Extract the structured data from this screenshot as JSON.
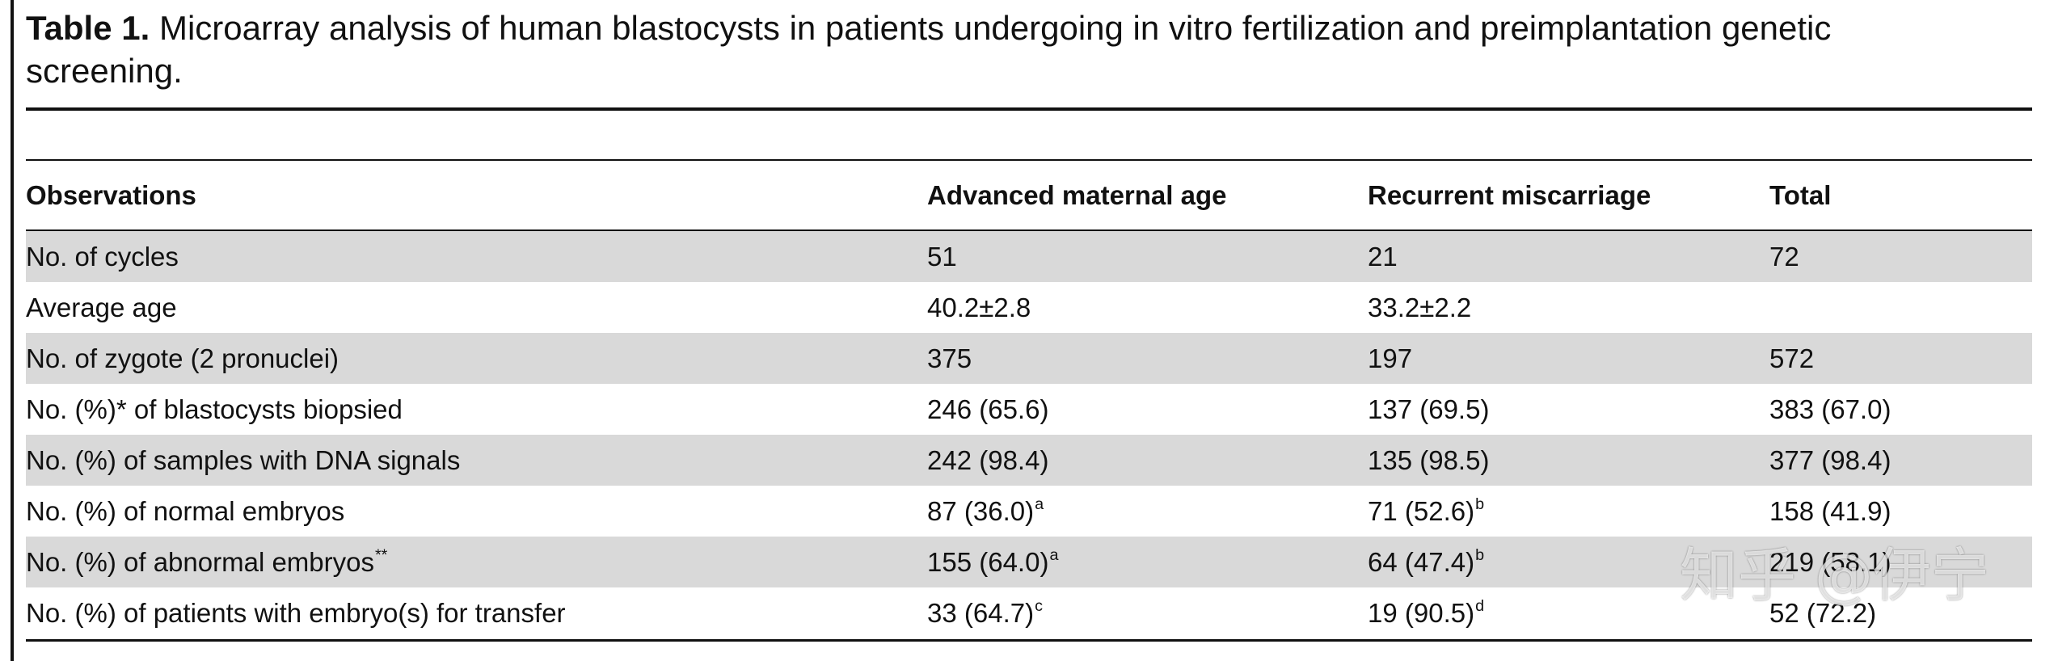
{
  "title": {
    "label": "Table 1.",
    "text": "Microarray analysis of human blastocysts in patients undergoing in vitro fertilization and preimplantation genetic screening."
  },
  "table": {
    "columns": [
      "Observations",
      "Advanced maternal age",
      "Recurrent miscarriage",
      "Total"
    ],
    "rows": [
      {
        "label": "No. of cycles",
        "cells": [
          {
            "value": "51"
          },
          {
            "value": "21"
          },
          {
            "value": "72"
          }
        ]
      },
      {
        "label": "Average age",
        "cells": [
          {
            "value": "40.2±2.8"
          },
          {
            "value": "33.2±2.2"
          },
          {
            "value": ""
          }
        ]
      },
      {
        "label": "No. of zygote (2 pronuclei)",
        "cells": [
          {
            "value": "375"
          },
          {
            "value": "197"
          },
          {
            "value": "572"
          }
        ]
      },
      {
        "label": "No. (%)* of blastocysts biopsied",
        "cells": [
          {
            "value": "246 (65.6)"
          },
          {
            "value": "137 (69.5)"
          },
          {
            "value": "383 (67.0)"
          }
        ]
      },
      {
        "label": "No. (%) of samples with DNA signals",
        "cells": [
          {
            "value": "242 (98.4)"
          },
          {
            "value": "135 (98.5)"
          },
          {
            "value": "377 (98.4)"
          }
        ]
      },
      {
        "label": "No. (%) of normal embryos",
        "cells": [
          {
            "value": "87 (36.0)",
            "sup": "a"
          },
          {
            "value": "71 (52.6)",
            "sup": "b"
          },
          {
            "value": "158 (41.9)"
          }
        ]
      },
      {
        "label": "No. (%) of abnormal embryos",
        "label_sup": "**",
        "cells": [
          {
            "value": "155 (64.0)",
            "sup": "a"
          },
          {
            "value": "64 (47.4)",
            "sup": "b"
          },
          {
            "value": "219 (58.1)"
          }
        ]
      },
      {
        "label": "No. (%) of patients with embryo(s) for transfer",
        "cells": [
          {
            "value": "33 (64.7)",
            "sup": "c"
          },
          {
            "value": "19 (90.5)",
            "sup": "d"
          },
          {
            "value": "52 (72.2)"
          }
        ]
      }
    ]
  },
  "colors": {
    "text": "#111111",
    "shaded_row": "#d9d9d9",
    "background": "#ffffff"
  },
  "watermark": "知乎 @伊宁"
}
